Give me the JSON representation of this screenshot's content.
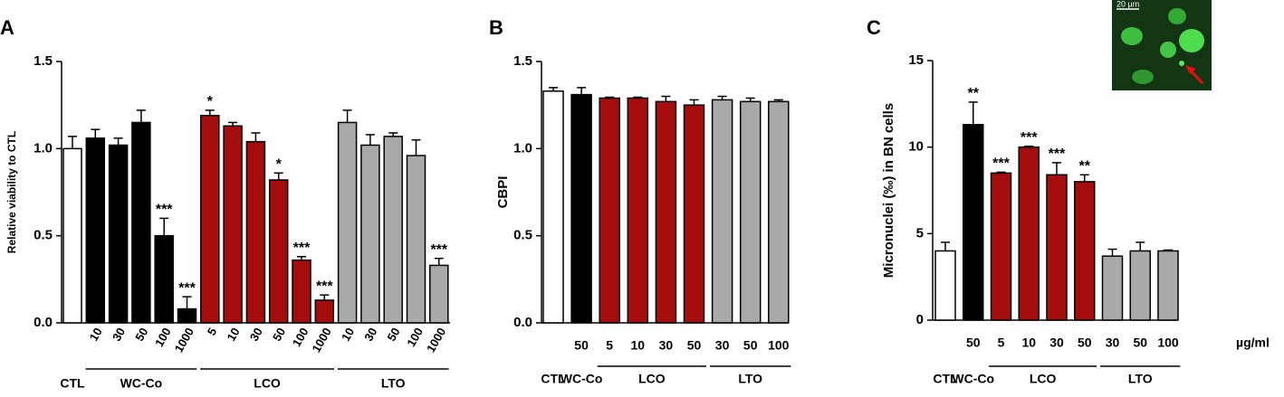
{
  "chart_data": [
    {
      "type": "bar",
      "panel": "A",
      "ylabel": "Relative viability to CTL",
      "categories": [
        null,
        "10",
        "30",
        "50",
        "100",
        "1000",
        "5",
        "10",
        "30",
        "50",
        "100",
        "1000",
        "10",
        "30",
        "50",
        "100",
        "1000"
      ],
      "values": [
        1.0,
        1.06,
        1.02,
        1.15,
        0.5,
        0.08,
        1.19,
        1.13,
        1.04,
        0.82,
        0.36,
        0.13,
        1.15,
        1.02,
        1.07,
        0.96,
        0.33
      ],
      "errors": [
        0.07,
        0.05,
        0.04,
        0.07,
        0.1,
        0.07,
        0.03,
        0.02,
        0.05,
        0.04,
        0.02,
        0.03,
        0.07,
        0.06,
        0.02,
        0.09,
        0.04
      ],
      "colors": [
        "#ffffff",
        "#000000",
        "#000000",
        "#000000",
        "#000000",
        "#000000",
        "#a30d0d",
        "#a30d0d",
        "#a30d0d",
        "#a30d0d",
        "#a30d0d",
        "#a30d0d",
        "#a9a9a9",
        "#a9a9a9",
        "#a9a9a9",
        "#a9a9a9",
        "#a9a9a9"
      ],
      "annotations": [
        null,
        null,
        null,
        null,
        "***",
        "***",
        "*",
        null,
        null,
        "*",
        "***",
        "***",
        null,
        null,
        null,
        null,
        "***"
      ],
      "groups": [
        {
          "label": "CTL",
          "from": 0,
          "to": 0,
          "underline": false
        },
        {
          "label": "WC-Co",
          "from": 1,
          "to": 5,
          "underline": true
        },
        {
          "label": "LCO",
          "from": 6,
          "to": 11,
          "underline": true
        },
        {
          "label": "LTO",
          "from": 12,
          "to": 16,
          "underline": true
        }
      ],
      "ylim": [
        0,
        1.5
      ],
      "yticks": [
        {
          "value": 0,
          "label": "0.0"
        },
        0.5,
        {
          "value": 1,
          "label": "1.0"
        },
        1.5
      ]
    },
    {
      "type": "bar",
      "panel": "B",
      "ylabel": "CBPI",
      "categories": [
        null,
        "50",
        "5",
        "10",
        "30",
        "50",
        "30",
        "50",
        "100"
      ],
      "values": [
        1.33,
        1.31,
        1.29,
        1.29,
        1.27,
        1.25,
        1.28,
        1.27,
        1.27
      ],
      "errors": [
        0.02,
        0.04,
        0.005,
        0.005,
        0.03,
        0.03,
        0.02,
        0.02,
        0.01
      ],
      "colors": [
        "#ffffff",
        "#000000",
        "#a30d0d",
        "#a30d0d",
        "#a30d0d",
        "#a30d0d",
        "#a9a9a9",
        "#a9a9a9",
        "#a9a9a9"
      ],
      "annotations": [
        null,
        null,
        null,
        null,
        null,
        null,
        null,
        null,
        null
      ],
      "groups": [
        {
          "label": "CTL",
          "from": 0,
          "to": 0,
          "underline": false
        },
        {
          "label": "WC-Co",
          "from": 1,
          "to": 1,
          "underline": false
        },
        {
          "label": "LCO",
          "from": 2,
          "to": 5,
          "underline": true
        },
        {
          "label": "LTO",
          "from": 6,
          "to": 8,
          "underline": true
        }
      ],
      "ylim": [
        0,
        1.5
      ],
      "yticks": [
        {
          "value": 0,
          "label": "0.0"
        },
        0.5,
        {
          "value": 1,
          "label": "1.0"
        },
        1.5
      ]
    },
    {
      "type": "bar",
      "panel": "C",
      "ylabel": "Micronuclei (‰) in BN cells",
      "unit_label": "µg/ml",
      "inset_label": "20 µm",
      "categories": [
        null,
        "50",
        "5",
        "10",
        "30",
        "50",
        "30",
        "50",
        "100"
      ],
      "values": [
        4,
        11.3,
        8.5,
        10,
        8.4,
        8,
        3.7,
        4,
        4
      ],
      "errors": [
        0.5,
        1.3,
        0.05,
        0.05,
        0.7,
        0.4,
        0.4,
        0.5,
        0.05
      ],
      "colors": [
        "#ffffff",
        "#000000",
        "#a30d0d",
        "#a30d0d",
        "#a30d0d",
        "#a30d0d",
        "#a9a9a9",
        "#a9a9a9",
        "#a9a9a9"
      ],
      "annotations": [
        null,
        "**",
        "***",
        "***",
        "***",
        "**",
        null,
        null,
        null
      ],
      "groups": [
        {
          "label": "CTL",
          "from": 0,
          "to": 0,
          "underline": false
        },
        {
          "label": "WC-Co",
          "from": 1,
          "to": 1,
          "underline": false
        },
        {
          "label": "LCO",
          "from": 2,
          "to": 5,
          "underline": true
        },
        {
          "label": "LTO",
          "from": 6,
          "to": 8,
          "underline": true
        }
      ],
      "ylim": [
        0,
        15
      ],
      "yticks": [
        0,
        5,
        10,
        15
      ]
    }
  ]
}
